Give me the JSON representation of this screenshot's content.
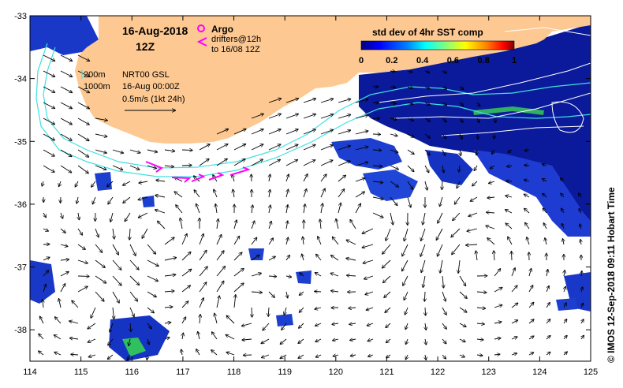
{
  "map": {
    "date": "16-Aug-2018",
    "time": "12Z",
    "legend": {
      "argo": "Argo",
      "drifters_line1": "drifters@12h",
      "drifters_line2": "to 16/08 12Z",
      "argo_color": "#ff00ff",
      "drifter_color": "#ff00ff"
    },
    "annotations": {
      "isobath_200": "200m",
      "isobath_1000": "1000m",
      "product": "NRT00 GSL",
      "product_time": "16-Aug 00:00Z",
      "scale": "0.5m/s (1kt 24h)"
    },
    "colorbar": {
      "title": "std dev of 4hr SST comp",
      "ticks": [
        "0",
        "0.2",
        "0.4",
        "0.6",
        "0.8",
        "1"
      ],
      "colors": [
        "#00007f",
        "#0000ff",
        "#0080ff",
        "#00ffff",
        "#80ff80",
        "#ffff00",
        "#ff8000",
        "#ff0000",
        "#7f0000"
      ]
    },
    "credit": "© IMOS 12-Sep-2018 09:11 Hobart Time",
    "x_axis": {
      "min": 114,
      "max": 125,
      "ticks": [
        "114",
        "115",
        "116",
        "117",
        "118",
        "119",
        "120",
        "121",
        "122",
        "123",
        "124",
        "125"
      ]
    },
    "y_axis": {
      "min": -38.5,
      "max": -33,
      "ticks": [
        "-33",
        "-34",
        "-35",
        "-36",
        "-37",
        "-38"
      ]
    },
    "land_color": "#fdc891",
    "isobath_color": "#40e0e0"
  }
}
